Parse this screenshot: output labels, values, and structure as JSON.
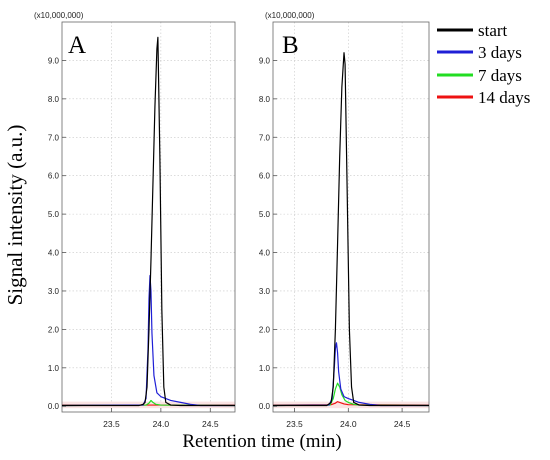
{
  "figure": {
    "ylabel": "Signal intensity (a.u.)",
    "xlabel": "Retention time (min)"
  },
  "legend": {
    "entries": [
      {
        "label": "start",
        "color": "#000000"
      },
      {
        "label": "3 days",
        "color": "#1f1fd6"
      },
      {
        "label": "7 days",
        "color": "#22dd22"
      },
      {
        "label": "14 days",
        "color": "#ee1111"
      }
    ]
  },
  "chart_data": [
    {
      "type": "line",
      "panel_label": "A",
      "multiplier": "(x10,000,000)",
      "xlim": [
        23.0,
        24.75
      ],
      "ylim": [
        -0.15,
        10.0
      ],
      "xticks": [
        23.5,
        24.0,
        24.5
      ],
      "xtick_labels": [
        "23.5",
        "24.0",
        "24.5"
      ],
      "yticks": [
        0,
        1,
        2,
        3,
        4,
        5,
        6,
        7,
        8,
        9
      ],
      "ytick_labels": [
        "0.0",
        "1.0",
        "2.0",
        "3.0",
        "4.0",
        "5.0",
        "6.0",
        "7.0",
        "8.0",
        "9.0"
      ],
      "grid": true,
      "series": [
        {
          "name": "start",
          "color": "#000000",
          "x": [
            23.0,
            23.78,
            23.82,
            23.84,
            23.86,
            23.88,
            23.9,
            23.92,
            23.94,
            23.96,
            23.97,
            23.99,
            24.01,
            24.03,
            24.05,
            24.1,
            24.2,
            24.3,
            24.75
          ],
          "y": [
            0.02,
            0.02,
            0.05,
            0.1,
            0.5,
            2.0,
            3.8,
            5.8,
            7.8,
            9.3,
            9.6,
            6.5,
            2.5,
            0.5,
            0.1,
            0.03,
            0.02,
            0.02,
            0.02
          ]
        },
        {
          "name": "3 days",
          "color": "#1f1fd6",
          "x": [
            23.0,
            23.82,
            23.85,
            23.87,
            23.88,
            23.89,
            23.9,
            23.91,
            23.93,
            23.96,
            24.0,
            24.05,
            24.1,
            24.2,
            24.3,
            24.4,
            24.75
          ],
          "y": [
            0.02,
            0.03,
            0.2,
            1.5,
            2.8,
            3.4,
            3.0,
            1.9,
            0.8,
            0.35,
            0.25,
            0.2,
            0.15,
            0.1,
            0.05,
            0.02,
            0.02
          ]
        },
        {
          "name": "7 days",
          "color": "#22dd22",
          "x": [
            23.0,
            23.85,
            23.88,
            23.9,
            23.92,
            23.95,
            24.0,
            24.75
          ],
          "y": [
            0.02,
            0.03,
            0.08,
            0.15,
            0.1,
            0.05,
            0.03,
            0.02
          ]
        },
        {
          "name": "14 days",
          "color": "#ee1111",
          "x": [
            23.0,
            24.75
          ],
          "y": [
            0.03,
            0.03
          ]
        }
      ]
    },
    {
      "type": "line",
      "panel_label": "B",
      "multiplier": "(x10,000,000)",
      "xlim": [
        23.3,
        24.75
      ],
      "ylim": [
        -0.15,
        10.0
      ],
      "xticks": [
        23.5,
        24.0,
        24.5
      ],
      "xtick_labels": [
        "23.5",
        "24.0",
        "24.5"
      ],
      "yticks": [
        0,
        1,
        2,
        3,
        4,
        5,
        6,
        7,
        8,
        9
      ],
      "ytick_labels": [
        "0.0",
        "1.0",
        "2.0",
        "3.0",
        "4.0",
        "5.0",
        "6.0",
        "7.0",
        "8.0",
        "9.0"
      ],
      "grid": true,
      "series": [
        {
          "name": "start",
          "color": "#000000",
          "x": [
            23.3,
            23.8,
            23.84,
            23.86,
            23.88,
            23.9,
            23.92,
            23.94,
            23.96,
            23.97,
            23.99,
            24.01,
            24.03,
            24.05,
            24.1,
            24.2,
            24.75
          ],
          "y": [
            0.02,
            0.02,
            0.1,
            0.5,
            2.0,
            4.2,
            6.5,
            8.3,
            9.2,
            8.9,
            5.5,
            2.0,
            0.5,
            0.1,
            0.03,
            0.02,
            0.02
          ]
        },
        {
          "name": "3 days",
          "color": "#1f1fd6",
          "x": [
            23.3,
            23.82,
            23.85,
            23.87,
            23.88,
            23.89,
            23.9,
            23.91,
            23.93,
            23.96,
            24.0,
            24.05,
            24.1,
            24.2,
            24.3,
            24.75
          ],
          "y": [
            0.02,
            0.03,
            0.2,
            1.0,
            1.5,
            1.65,
            1.4,
            0.9,
            0.45,
            0.25,
            0.2,
            0.15,
            0.1,
            0.05,
            0.02,
            0.02
          ]
        },
        {
          "name": "7 days",
          "color": "#22dd22",
          "x": [
            23.3,
            23.83,
            23.86,
            23.88,
            23.9,
            23.92,
            23.94,
            23.97,
            24.0,
            24.05,
            24.1,
            24.75
          ],
          "y": [
            0.02,
            0.03,
            0.2,
            0.45,
            0.6,
            0.5,
            0.3,
            0.15,
            0.1,
            0.05,
            0.03,
            0.02
          ]
        },
        {
          "name": "14 days",
          "color": "#ee1111",
          "x": [
            23.3,
            23.84,
            23.88,
            23.9,
            23.92,
            23.96,
            24.0,
            24.75
          ],
          "y": [
            0.03,
            0.04,
            0.08,
            0.12,
            0.1,
            0.06,
            0.04,
            0.03
          ]
        }
      ]
    }
  ]
}
